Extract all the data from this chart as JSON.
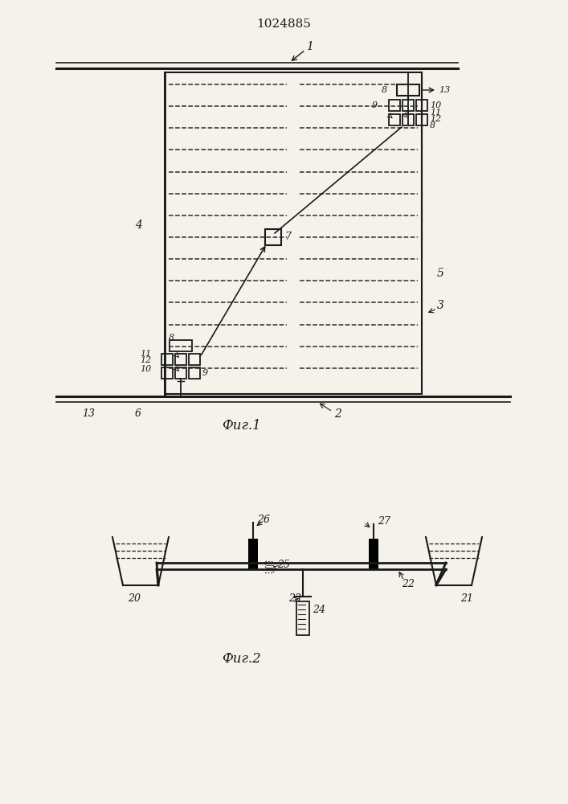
{
  "title": "1024885",
  "bg_color": "#f5f2ec",
  "fig1_label": "Фиг.1",
  "fig2_label": "Фиг.2",
  "lc": "#1a1a1a",
  "dc": "#2a2a2a"
}
